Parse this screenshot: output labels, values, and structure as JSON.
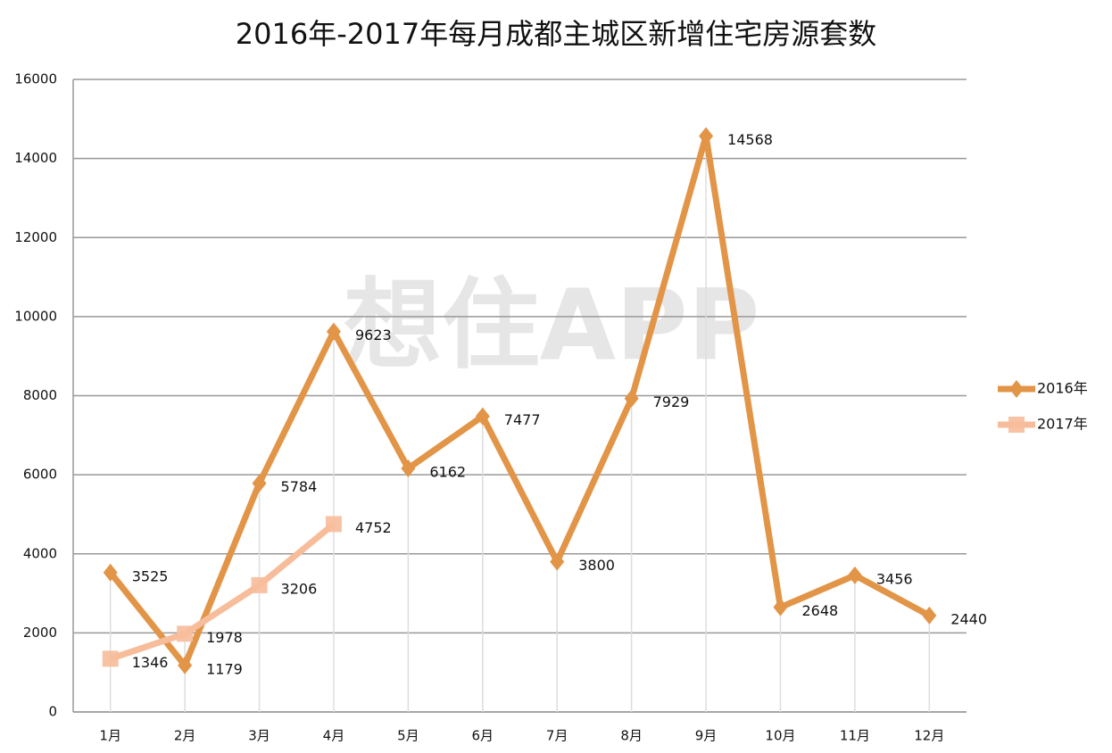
{
  "chart_data": {
    "type": "line",
    "title": "2016年-2017年每月成都主城区新增住宅房源套数",
    "watermark": "想住APP",
    "categories": [
      "1月",
      "2月",
      "3月",
      "4月",
      "5月",
      "6月",
      "7月",
      "8月",
      "9月",
      "10月",
      "11月",
      "12月"
    ],
    "series": [
      {
        "name": "2016年",
        "color": "#e29447",
        "marker": "diamond",
        "values": [
          3525,
          1179,
          5784,
          9623,
          6162,
          7477,
          3800,
          7929,
          14568,
          2648,
          3456,
          2440
        ]
      },
      {
        "name": "2017年",
        "color": "#f7bc9a",
        "marker": "square",
        "values": [
          1346,
          1978,
          3206,
          4752,
          null,
          null,
          null,
          null,
          null,
          null,
          null,
          null
        ]
      }
    ],
    "ylim": [
      0,
      16000
    ],
    "yticks": [
      0,
      2000,
      4000,
      6000,
      8000,
      10000,
      12000,
      14000,
      16000
    ],
    "grid": true,
    "legend": "right",
    "data_labels": true
  }
}
